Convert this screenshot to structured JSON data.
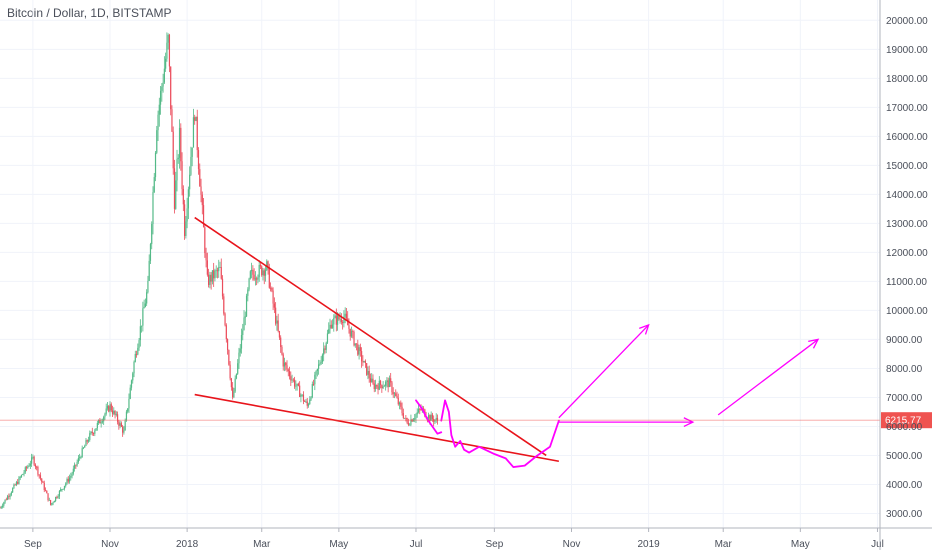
{
  "chart_data": {
    "type": "candlestick",
    "title": "Bitcoin / Dollar, 1D, BITSTAMP",
    "xlabel": "",
    "ylabel": "",
    "ylim": [
      2500,
      20700
    ],
    "y_ticks": [
      3000,
      4000,
      5000,
      6000,
      7000,
      8000,
      9000,
      10000,
      11000,
      12000,
      13000,
      14000,
      15000,
      16000,
      17000,
      18000,
      19000,
      20000
    ],
    "y_tick_labels": [
      "3000.00",
      "4000.00",
      "5000.00",
      "6000.00",
      "7000.00",
      "8000.00",
      "9000.00",
      "10000.00",
      "11000.00",
      "12000.00",
      "13000.00",
      "14000.00",
      "15000.00",
      "16000.00",
      "17000.00",
      "18000.00",
      "19000.00",
      "20000.00"
    ],
    "x_ticks": [
      {
        "date": "2017-09-01",
        "label": "Sep"
      },
      {
        "date": "2017-11-01",
        "label": "Nov"
      },
      {
        "date": "2018-01-01",
        "label": "2018"
      },
      {
        "date": "2018-03-01",
        "label": "Mar"
      },
      {
        "date": "2018-05-01",
        "label": "May"
      },
      {
        "date": "2018-07-01",
        "label": "Jul"
      },
      {
        "date": "2018-09-01",
        "label": "Sep"
      },
      {
        "date": "2018-11-01",
        "label": "Nov"
      },
      {
        "date": "2019-01-01",
        "label": "2019"
      },
      {
        "date": "2019-03-01",
        "label": "Mar"
      },
      {
        "date": "2019-05-01",
        "label": "May"
      },
      {
        "date": "2019-07-01",
        "label": "Jul"
      }
    ],
    "xlim": [
      "2017-08-06",
      "2019-07-03"
    ],
    "current_price": 6215.77,
    "current_price_label": "6215.77",
    "grid": true,
    "colors": {
      "up": "#53b987",
      "down": "#eb4d5c",
      "trendline": "#e8141b",
      "drawing": "#ff00ff",
      "price_label": "#ef5350"
    },
    "series": [
      {
        "type": "close_path",
        "points": [
          [
            "2017-08-06",
            3200
          ],
          [
            "2017-08-20",
            4100
          ],
          [
            "2017-09-01",
            4900
          ],
          [
            "2017-09-15",
            3300
          ],
          [
            "2017-10-01",
            4300
          ],
          [
            "2017-10-15",
            5600
          ],
          [
            "2017-11-01",
            6700
          ],
          [
            "2017-11-12",
            5800
          ],
          [
            "2017-11-20",
            8200
          ],
          [
            "2017-12-01",
            10800
          ],
          [
            "2017-12-08",
            16500
          ],
          [
            "2017-12-17",
            19300
          ],
          [
            "2017-12-22",
            13800
          ],
          [
            "2017-12-26",
            16000
          ],
          [
            "2017-12-30",
            12800
          ],
          [
            "2018-01-07",
            16900
          ],
          [
            "2018-01-17",
            11000
          ],
          [
            "2018-01-27",
            11400
          ],
          [
            "2018-02-06",
            6900
          ],
          [
            "2018-02-20",
            11200
          ],
          [
            "2018-03-05",
            11500
          ],
          [
            "2018-03-18",
            8200
          ],
          [
            "2018-04-06",
            6700
          ],
          [
            "2018-04-25",
            9600
          ],
          [
            "2018-05-05",
            9800
          ],
          [
            "2018-05-28",
            7400
          ],
          [
            "2018-06-10",
            7500
          ],
          [
            "2018-06-24",
            6100
          ],
          [
            "2018-07-05",
            6600
          ],
          [
            "2018-07-12",
            6300
          ],
          [
            "2018-07-18",
            6200
          ]
        ]
      }
    ],
    "lines": [
      {
        "name": "upper-trendline",
        "points": [
          [
            "2018-01-07",
            13200
          ],
          [
            "2018-10-12",
            5000
          ]
        ]
      },
      {
        "name": "lower-trendline",
        "points": [
          [
            "2018-01-07",
            7100
          ],
          [
            "2018-10-22",
            4800
          ]
        ]
      }
    ],
    "annotations": [
      {
        "type": "path",
        "points": [
          [
            "2018-07-01",
            6900
          ],
          [
            "2018-07-06",
            6600
          ],
          [
            "2018-07-10",
            6250
          ],
          [
            "2018-07-14",
            6000
          ],
          [
            "2018-07-18",
            5750
          ],
          [
            "2018-07-21",
            5800
          ]
        ]
      },
      {
        "type": "path",
        "points": [
          [
            "2018-07-21",
            6200
          ],
          [
            "2018-07-24",
            6900
          ],
          [
            "2018-07-27",
            6500
          ],
          [
            "2018-07-29",
            5700
          ],
          [
            "2018-08-01",
            5300
          ],
          [
            "2018-08-05",
            5500
          ],
          [
            "2018-08-08",
            5200
          ],
          [
            "2018-08-12",
            5100
          ],
          [
            "2018-08-20",
            5300
          ],
          [
            "2018-09-01",
            5050
          ],
          [
            "2018-09-10",
            4900
          ],
          [
            "2018-09-16",
            4600
          ],
          [
            "2018-09-25",
            4650
          ],
          [
            "2018-10-05",
            5000
          ],
          [
            "2018-10-15",
            5300
          ],
          [
            "2018-10-22",
            6200
          ]
        ]
      },
      {
        "type": "arrow",
        "points": [
          [
            "2018-10-22",
            6300
          ],
          [
            "2019-01-01",
            9500
          ]
        ]
      },
      {
        "type": "arrow",
        "points": [
          [
            "2018-10-22",
            6150
          ],
          [
            "2019-02-05",
            6150
          ]
        ]
      },
      {
        "type": "arrow",
        "points": [
          [
            "2019-02-25",
            6400
          ],
          [
            "2019-05-15",
            9000
          ]
        ]
      }
    ]
  }
}
